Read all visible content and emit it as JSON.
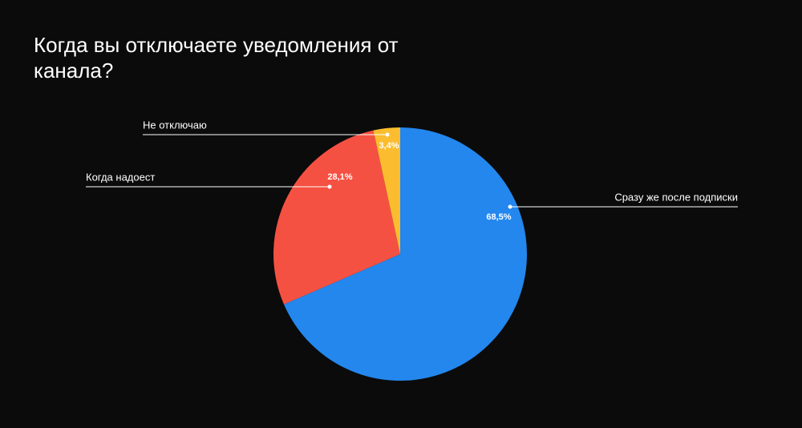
{
  "chart_data": {
    "type": "pie",
    "title": "Когда вы отключаете уведомления от канала?",
    "categories": [
      "Сразу же после подписки",
      "Когда надоест",
      "Не отключаю"
    ],
    "values": [
      68.5,
      28.1,
      3.4
    ],
    "value_labels": [
      "68,5%",
      "28,1%",
      "3,4%"
    ],
    "colors": [
      "#2387ee",
      "#f55142",
      "#fbbd2f"
    ]
  }
}
